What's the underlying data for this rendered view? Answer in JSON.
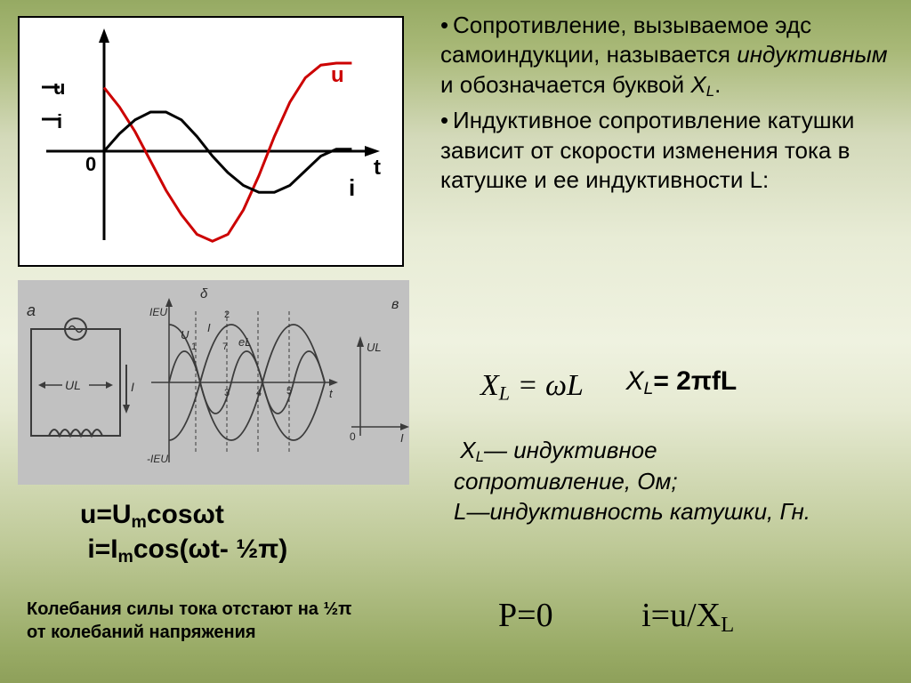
{
  "background": {
    "top_gradient": [
      "#96aa63",
      "#a9b978",
      "#d3d9b9",
      "#e8ecd6",
      "#eff2e0"
    ],
    "bottom_gradient": [
      "#eff2e0",
      "#e6ead2",
      "#bec997",
      "#99ab66",
      "#8ea05a"
    ]
  },
  "text_blocks": {
    "para1": "Сопротивление, вызываемое эдс самоиндукции, называется ",
    "para1_em": "индуктивным",
    "para1_tail": " и обозначается буквой ",
    "para1_sym": "XL",
    "para1_end": ".",
    "para2": "Индуктивное сопротивление катушки зависит от скорости изменения тока в катушке и ее индуктивности L:"
  },
  "formulas": {
    "xl_omega": "X_L = ωL",
    "xl_2pif": "XL= 2πfL",
    "defs_line1": "XL— индуктивное сопротивление, Ом;",
    "defs_line2": "L—индуктивность катушки, Гн.",
    "p_zero": "P=0",
    "i_u_xl": "i=u/XL",
    "u_eq": "u=Umcosωt",
    "i_eq": "i=Imcos(ωt- ½π)",
    "note_line1": "Колебания силы тока отстают на ½π",
    "note_line2": "от колебаний напряжения"
  },
  "chart1": {
    "type": "line",
    "background_color": "#ffffff",
    "border_color": "#000000",
    "axes_color": "#000000",
    "axes": {
      "x_label": "t",
      "y_labels_left": [
        "u",
        "i"
      ],
      "origin_label": "0"
    },
    "series": [
      {
        "name": "u",
        "color": "#cc0000",
        "line_width": 3,
        "label": "u",
        "label_color": "#cc0000",
        "points": [
          [
            0,
            0.65
          ],
          [
            0.06,
            0.45
          ],
          [
            0.12,
            0.2
          ],
          [
            0.18,
            -0.1
          ],
          [
            0.24,
            -0.4
          ],
          [
            0.3,
            -0.65
          ],
          [
            0.36,
            -0.85
          ],
          [
            0.42,
            -0.92
          ],
          [
            0.48,
            -0.85
          ],
          [
            0.54,
            -0.6
          ],
          [
            0.6,
            -0.25
          ],
          [
            0.66,
            0.15
          ],
          [
            0.72,
            0.5
          ],
          [
            0.78,
            0.75
          ],
          [
            0.84,
            0.88
          ],
          [
            0.9,
            0.9
          ],
          [
            0.96,
            0.9
          ]
        ]
      },
      {
        "name": "i",
        "color": "#000000",
        "line_width": 3,
        "label": "i",
        "label_color": "#000000",
        "points": [
          [
            0,
            0
          ],
          [
            0.06,
            0.18
          ],
          [
            0.12,
            0.32
          ],
          [
            0.18,
            0.4
          ],
          [
            0.24,
            0.4
          ],
          [
            0.3,
            0.32
          ],
          [
            0.36,
            0.15
          ],
          [
            0.42,
            -0.05
          ],
          [
            0.48,
            -0.22
          ],
          [
            0.54,
            -0.35
          ],
          [
            0.6,
            -0.42
          ],
          [
            0.66,
            -0.42
          ],
          [
            0.72,
            -0.35
          ],
          [
            0.78,
            -0.2
          ],
          [
            0.84,
            -0.05
          ],
          [
            0.9,
            0.02
          ],
          [
            0.96,
            0.02
          ]
        ]
      }
    ],
    "xrange": [
      0,
      1
    ],
    "yrange": [
      -1,
      1
    ]
  },
  "chart2": {
    "type": "composite",
    "background_color": "#c8c8c8",
    "circuit": {
      "label_a": "a",
      "label_UL": "UL",
      "source_symbol": "~",
      "inductor": true,
      "arrow_label": "I"
    },
    "graph": {
      "label_top": "δ",
      "y_top_label": "IEU",
      "y_bot_label": "-IEU",
      "x_label": "t",
      "curve_labels": [
        "U",
        "I",
        "eL"
      ],
      "tick_numbers": [
        "1",
        "2",
        "3",
        "4",
        "5",
        "7"
      ],
      "series_count": 3,
      "line_color": "#303030"
    },
    "phasor": {
      "label_b": "в",
      "x_label": "I",
      "y_label": "UL",
      "origin_label": "0"
    }
  },
  "fonts": {
    "body_size_pt": 26,
    "formula_size_pt": 34,
    "note_size_pt": 20
  },
  "colors": {
    "text": "#000000",
    "voltage_curve": "#cc0000",
    "current_curve": "#000000"
  }
}
